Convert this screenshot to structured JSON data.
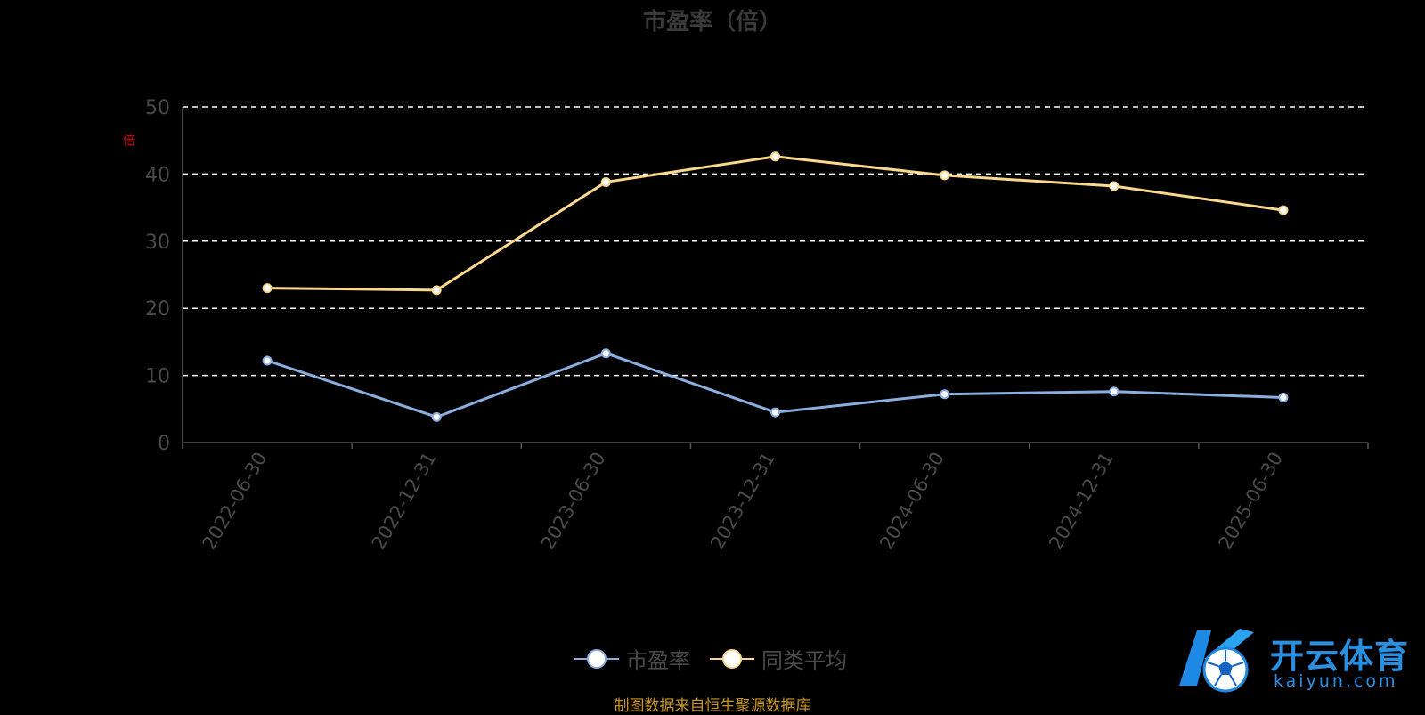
{
  "title": "市盈率（倍）",
  "unit_label": "倍",
  "source_note": "制图数据来自恒生聚源数据库",
  "watermark": {
    "cn": "开云体育",
    "en": "kaiyun.com"
  },
  "colors": {
    "series_pe": "#8aaee0",
    "series_avg": "#fcd88e",
    "axis": "#555555",
    "grid": "#ffffff",
    "text": "#3a3a3a"
  },
  "legend": [
    {
      "name": "市盈率",
      "color": "#8aaee0"
    },
    {
      "name": "同类平均",
      "color": "#fcd88e"
    }
  ],
  "chart_data": {
    "type": "line",
    "title": "市盈率（倍）",
    "ylabel": "倍",
    "xlabel": "",
    "categories": [
      "2022-06-30",
      "2022-12-31",
      "2023-06-30",
      "2023-12-31",
      "2024-06-30",
      "2024-12-31",
      "2025-06-30"
    ],
    "yticks": [
      0,
      10,
      20,
      30,
      40,
      50
    ],
    "ylim": [
      0,
      50
    ],
    "grid": true,
    "legend_position": "bottom",
    "series": [
      {
        "name": "市盈率",
        "color": "#8aaee0",
        "values": [
          12.2,
          3.8,
          13.3,
          4.5,
          7.2,
          7.6,
          6.7
        ]
      },
      {
        "name": "同类平均",
        "color": "#fcd88e",
        "values": [
          23.0,
          22.7,
          38.8,
          42.6,
          39.8,
          38.2,
          34.6
        ]
      }
    ]
  }
}
